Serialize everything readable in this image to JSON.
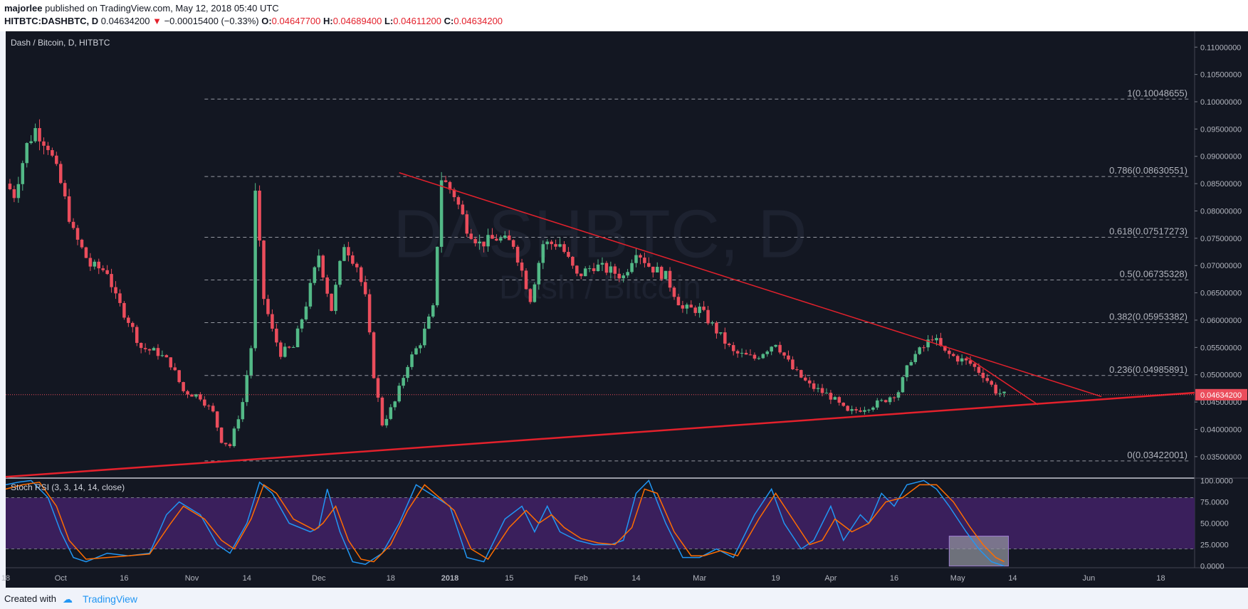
{
  "header": {
    "author": "majorlee",
    "published_text": "published on TradingView.com, May 12, 2018 05:40 UTC",
    "symbol": "HITBTC:DASHBTC, D",
    "price": "0.04634200",
    "change": "−0.00015400 (−0.33%)",
    "o_label": "O:",
    "o_value": "0.04647700",
    "h_label": "H:",
    "h_value": "0.04689400",
    "l_label": "L:",
    "l_value": "0.04611200",
    "c_label": "C:",
    "c_value": "0.04634200"
  },
  "footer": {
    "created_with": "Created with",
    "brand": "TradingView"
  },
  "colors": {
    "background": "#131722",
    "up": "#53b987",
    "down": "#eb4d5c",
    "trendline": "#e3212c",
    "rsi_k": "#2196f3",
    "rsi_d": "#ff6d00",
    "rsi_band": "#3a1f5c",
    "grid": "#2a2e39"
  },
  "chart_data": [
    {
      "type": "candlestick",
      "title": "Dash / Bitcoin, D, HITBTC",
      "watermark": "DASHBTC, D",
      "watermark_sub": "Dash / Bitcoin",
      "last_price": "0.04634200",
      "ylim": [
        0.0312,
        0.1129
      ],
      "y_ticks": [
        "0.11000000",
        "0.10500000",
        "0.10000000",
        "0.09500000",
        "0.09000000",
        "0.08500000",
        "0.08000000",
        "0.07500000",
        "0.07000000",
        "0.06500000",
        "0.06000000",
        "0.05500000",
        "0.05000000",
        "0.04500000",
        "0.04000000",
        "0.03500000"
      ],
      "x_range": [
        "2017-09-18",
        "2018-06-26"
      ],
      "x_ticks": [
        {
          "date": "2017-09-18",
          "label": "18"
        },
        {
          "date": "2017-10-01",
          "label": "Oct"
        },
        {
          "date": "2017-10-16",
          "label": "16"
        },
        {
          "date": "2017-11-01",
          "label": "Nov"
        },
        {
          "date": "2017-11-14",
          "label": "14"
        },
        {
          "date": "2017-12-01",
          "label": "Dec"
        },
        {
          "date": "2017-12-18",
          "label": "18"
        },
        {
          "date": "2018-01-01",
          "label": "2018"
        },
        {
          "date": "2018-01-15",
          "label": "15"
        },
        {
          "date": "2018-02-01",
          "label": "Feb"
        },
        {
          "date": "2018-02-14",
          "label": "14"
        },
        {
          "date": "2018-03-01",
          "label": "Mar"
        },
        {
          "date": "2018-03-19",
          "label": "19"
        },
        {
          "date": "2018-04-01",
          "label": "Apr"
        },
        {
          "date": "2018-04-16",
          "label": "16"
        },
        {
          "date": "2018-05-01",
          "label": "May"
        },
        {
          "date": "2018-05-14",
          "label": "14"
        },
        {
          "date": "2018-06-01",
          "label": "Jun"
        },
        {
          "date": "2018-06-18",
          "label": "18"
        }
      ],
      "close_path": [
        [
          "2017-09-18",
          0.085
        ],
        [
          "2017-09-20",
          0.083
        ],
        [
          "2017-09-23",
          0.092
        ],
        [
          "2017-09-25",
          0.095
        ],
        [
          "2017-09-28",
          0.092
        ],
        [
          "2017-10-01",
          0.085
        ],
        [
          "2017-10-04",
          0.076
        ],
        [
          "2017-10-08",
          0.07
        ],
        [
          "2017-10-12",
          0.069
        ],
        [
          "2017-10-14",
          0.064
        ],
        [
          "2017-10-17",
          0.06
        ],
        [
          "2017-10-20",
          0.055
        ],
        [
          "2017-10-24",
          0.054
        ],
        [
          "2017-10-27",
          0.052
        ],
        [
          "2017-10-30",
          0.047
        ],
        [
          "2017-11-03",
          0.046
        ],
        [
          "2017-11-06",
          0.043
        ],
        [
          "2017-11-08",
          0.038
        ],
        [
          "2017-11-10",
          0.037
        ],
        [
          "2017-11-13",
          0.045
        ],
        [
          "2017-11-15",
          0.055
        ],
        [
          "2017-11-16",
          0.083
        ],
        [
          "2017-11-18",
          0.064
        ],
        [
          "2017-11-20",
          0.058
        ],
        [
          "2017-11-22",
          0.054
        ],
        [
          "2017-11-25",
          0.055
        ],
        [
          "2017-11-28",
          0.063
        ],
        [
          "2017-12-01",
          0.072
        ],
        [
          "2017-12-04",
          0.062
        ],
        [
          "2017-12-07",
          0.074
        ],
        [
          "2017-12-10",
          0.07
        ],
        [
          "2017-12-12",
          0.064
        ],
        [
          "2017-12-14",
          0.05
        ],
        [
          "2017-12-16",
          0.041
        ],
        [
          "2017-12-19",
          0.045
        ],
        [
          "2017-12-22",
          0.052
        ],
        [
          "2017-12-25",
          0.056
        ],
        [
          "2017-12-28",
          0.062
        ],
        [
          "2017-12-30",
          0.086
        ],
        [
          "2018-01-02",
          0.083
        ],
        [
          "2018-01-05",
          0.077
        ],
        [
          "2018-01-08",
          0.074
        ],
        [
          "2018-01-12",
          0.075
        ],
        [
          "2018-01-16",
          0.074
        ],
        [
          "2018-01-20",
          0.064
        ],
        [
          "2018-01-23",
          0.074
        ],
        [
          "2018-01-27",
          0.074
        ],
        [
          "2018-01-31",
          0.068
        ],
        [
          "2018-02-04",
          0.07
        ],
        [
          "2018-02-08",
          0.069
        ],
        [
          "2018-02-11",
          0.068
        ],
        [
          "2018-02-14",
          0.073
        ],
        [
          "2018-02-17",
          0.07
        ],
        [
          "2018-02-21",
          0.068
        ],
        [
          "2018-02-25",
          0.062
        ],
        [
          "2018-03-01",
          0.062
        ],
        [
          "2018-03-05",
          0.058
        ],
        [
          "2018-03-09",
          0.054
        ],
        [
          "2018-03-14",
          0.053
        ],
        [
          "2018-03-19",
          0.056
        ],
        [
          "2018-03-23",
          0.051
        ],
        [
          "2018-03-27",
          0.048
        ],
        [
          "2018-04-01",
          0.046
        ],
        [
          "2018-04-05",
          0.043
        ],
        [
          "2018-04-09",
          0.044
        ],
        [
          "2018-04-13",
          0.045
        ],
        [
          "2018-04-17",
          0.047
        ],
        [
          "2018-04-20",
          0.053
        ],
        [
          "2018-04-23",
          0.055
        ],
        [
          "2018-04-25",
          0.057
        ],
        [
          "2018-04-28",
          0.054
        ],
        [
          "2018-05-01",
          0.053
        ],
        [
          "2018-05-04",
          0.052
        ],
        [
          "2018-05-07",
          0.05
        ],
        [
          "2018-05-10",
          0.047
        ],
        [
          "2018-05-12",
          0.0463
        ]
      ],
      "fibonacci": [
        {
          "label": "1(0.10048655)",
          "value": 0.10048655
        },
        {
          "label": "0.786(0.08630551)",
          "value": 0.08630551
        },
        {
          "label": "0.618(0.07517273)",
          "value": 0.07517273
        },
        {
          "label": "0.5(0.06735328)",
          "value": 0.06735328
        },
        {
          "label": "0.382(0.05953382)",
          "value": 0.05953382
        },
        {
          "label": "0.236(0.04985891)",
          "value": 0.04985891
        },
        {
          "label": "0(0.03422001)",
          "value": 0.03422001
        }
      ],
      "trendlines": [
        {
          "from": [
            "2017-12-20",
            0.087
          ],
          "to": [
            "2018-06-04",
            0.046
          ]
        },
        {
          "from": [
            "2017-09-18",
            0.0313
          ],
          "to": [
            "2018-06-26",
            0.0467
          ]
        },
        {
          "from": [
            "2018-05-03",
            0.0533
          ],
          "to": [
            "2018-05-20",
            0.0445
          ]
        }
      ]
    },
    {
      "type": "line",
      "title": "Stoch RSI (3, 3, 14, 14, close)",
      "ylim": [
        -2,
        102
      ],
      "y_ticks": [
        "100.0000",
        "75.0000",
        "50.0000",
        "25.0000",
        "0.0000"
      ],
      "band": [
        20,
        80
      ],
      "series": [
        {
          "name": "K",
          "points": [
            [
              "2017-09-18",
              95
            ],
            [
              "2017-09-21",
              98
            ],
            [
              "2017-09-24",
              100
            ],
            [
              "2017-09-28",
              80
            ],
            [
              "2017-10-01",
              40
            ],
            [
              "2017-10-04",
              10
            ],
            [
              "2017-10-07",
              5
            ],
            [
              "2017-10-12",
              15
            ],
            [
              "2017-10-17",
              12
            ],
            [
              "2017-10-22",
              15
            ],
            [
              "2017-10-26",
              60
            ],
            [
              "2017-10-29",
              75
            ],
            [
              "2017-11-03",
              60
            ],
            [
              "2017-11-07",
              25
            ],
            [
              "2017-11-10",
              15
            ],
            [
              "2017-11-14",
              50
            ],
            [
              "2017-11-17",
              98
            ],
            [
              "2017-11-20",
              85
            ],
            [
              "2017-11-24",
              50
            ],
            [
              "2017-11-29",
              40
            ],
            [
              "2017-12-01",
              45
            ],
            [
              "2017-12-03",
              90
            ],
            [
              "2017-12-06",
              40
            ],
            [
              "2017-12-09",
              5
            ],
            [
              "2017-12-12",
              2
            ],
            [
              "2017-12-16",
              15
            ],
            [
              "2017-12-20",
              50
            ],
            [
              "2017-12-24",
              95
            ],
            [
              "2018-01-01",
              70
            ],
            [
              "2018-01-05",
              10
            ],
            [
              "2018-01-09",
              5
            ],
            [
              "2018-01-14",
              55
            ],
            [
              "2018-01-18",
              70
            ],
            [
              "2018-01-21",
              40
            ],
            [
              "2018-01-24",
              70
            ],
            [
              "2018-01-27",
              40
            ],
            [
              "2018-01-31",
              30
            ],
            [
              "2018-02-04",
              25
            ],
            [
              "2018-02-08",
              25
            ],
            [
              "2018-02-11",
              30
            ],
            [
              "2018-02-14",
              85
            ],
            [
              "2018-02-17",
              100
            ],
            [
              "2018-02-21",
              50
            ],
            [
              "2018-02-25",
              10
            ],
            [
              "2018-03-01",
              10
            ],
            [
              "2018-03-05",
              20
            ],
            [
              "2018-03-09",
              10
            ],
            [
              "2018-03-14",
              60
            ],
            [
              "2018-03-18",
              90
            ],
            [
              "2018-03-21",
              50
            ],
            [
              "2018-03-25",
              20
            ],
            [
              "2018-03-28",
              30
            ],
            [
              "2018-04-01",
              70
            ],
            [
              "2018-04-04",
              30
            ],
            [
              "2018-04-08",
              60
            ],
            [
              "2018-04-10",
              50
            ],
            [
              "2018-04-13",
              85
            ],
            [
              "2018-04-16",
              70
            ],
            [
              "2018-04-19",
              95
            ],
            [
              "2018-04-23",
              100
            ],
            [
              "2018-04-26",
              90
            ],
            [
              "2018-04-29",
              70
            ],
            [
              "2018-05-03",
              40
            ],
            [
              "2018-05-06",
              20
            ],
            [
              "2018-05-09",
              5
            ],
            [
              "2018-05-12",
              0
            ]
          ]
        },
        {
          "name": "D",
          "points": [
            [
              "2017-09-18",
              90
            ],
            [
              "2017-09-22",
              95
            ],
            [
              "2017-09-26",
              98
            ],
            [
              "2017-09-30",
              70
            ],
            [
              "2017-10-03",
              30
            ],
            [
              "2017-10-07",
              8
            ],
            [
              "2017-10-12",
              10
            ],
            [
              "2017-10-17",
              12
            ],
            [
              "2017-10-22",
              14
            ],
            [
              "2017-10-27",
              50
            ],
            [
              "2017-10-30",
              70
            ],
            [
              "2017-11-04",
              55
            ],
            [
              "2017-11-08",
              30
            ],
            [
              "2017-11-11",
              20
            ],
            [
              "2017-11-15",
              55
            ],
            [
              "2017-11-18",
              95
            ],
            [
              "2017-11-21",
              85
            ],
            [
              "2017-11-25",
              55
            ],
            [
              "2017-11-30",
              42
            ],
            [
              "2017-12-02",
              50
            ],
            [
              "2017-12-05",
              70
            ],
            [
              "2017-12-08",
              30
            ],
            [
              "2017-12-11",
              8
            ],
            [
              "2017-12-14",
              5
            ],
            [
              "2017-12-18",
              25
            ],
            [
              "2017-12-22",
              65
            ],
            [
              "2017-12-26",
              95
            ],
            [
              "2018-01-02",
              65
            ],
            [
              "2018-01-06",
              20
            ],
            [
              "2018-01-10",
              8
            ],
            [
              "2018-01-15",
              45
            ],
            [
              "2018-01-19",
              65
            ],
            [
              "2018-01-22",
              50
            ],
            [
              "2018-01-25",
              60
            ],
            [
              "2018-01-28",
              45
            ],
            [
              "2018-02-01",
              32
            ],
            [
              "2018-02-05",
              27
            ],
            [
              "2018-02-09",
              25
            ],
            [
              "2018-02-13",
              45
            ],
            [
              "2018-02-16",
              90
            ],
            [
              "2018-02-19",
              85
            ],
            [
              "2018-02-23",
              40
            ],
            [
              "2018-02-27",
              12
            ],
            [
              "2018-03-02",
              12
            ],
            [
              "2018-03-06",
              18
            ],
            [
              "2018-03-10",
              12
            ],
            [
              "2018-03-15",
              55
            ],
            [
              "2018-03-19",
              85
            ],
            [
              "2018-03-23",
              55
            ],
            [
              "2018-03-27",
              25
            ],
            [
              "2018-03-30",
              30
            ],
            [
              "2018-04-02",
              55
            ],
            [
              "2018-04-06",
              40
            ],
            [
              "2018-04-10",
              50
            ],
            [
              "2018-04-14",
              75
            ],
            [
              "2018-04-18",
              80
            ],
            [
              "2018-04-22",
              95
            ],
            [
              "2018-04-26",
              95
            ],
            [
              "2018-04-30",
              75
            ],
            [
              "2018-05-04",
              45
            ],
            [
              "2018-05-07",
              25
            ],
            [
              "2018-05-10",
              10
            ],
            [
              "2018-05-12",
              5
            ]
          ]
        }
      ],
      "highlight_box": {
        "from": [
          "2018-04-29",
          35
        ],
        "to": [
          "2018-05-13",
          0
        ]
      }
    }
  ]
}
